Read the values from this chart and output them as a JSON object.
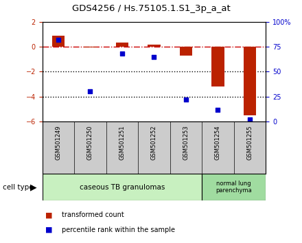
{
  "title": "GDS4256 / Hs.75105.1.S1_3p_a_at",
  "samples": [
    "GSM501249",
    "GSM501250",
    "GSM501251",
    "GSM501252",
    "GSM501253",
    "GSM501254",
    "GSM501255"
  ],
  "red_values": [
    0.9,
    -0.05,
    0.35,
    0.2,
    -0.7,
    -3.2,
    -5.5
  ],
  "blue_values": [
    82,
    30,
    68,
    65,
    22,
    12,
    2
  ],
  "ylim_left": [
    -6,
    2
  ],
  "ylim_right": [
    0,
    100
  ],
  "yticks_left": [
    2,
    0,
    -2,
    -4,
    -6
  ],
  "yticks_right": [
    0,
    25,
    50,
    75,
    100
  ],
  "group1_label": "caseous TB granulomas",
  "group1_samples": 5,
  "group2_label": "normal lung\nparenchyma",
  "group2_samples": 2,
  "group1_color": "#c8f0c0",
  "group2_color": "#a0dca0",
  "cell_type_label": "cell type",
  "legend1_label": "transformed count",
  "legend2_label": "percentile rank within the sample",
  "red_color": "#bb2200",
  "blue_color": "#0000cc",
  "background_color": "#ffffff",
  "plot_bg": "#ffffff",
  "label_bg": "#cccccc",
  "dotted_line_color": "#000000",
  "dashdot_line_color": "#cc0000",
  "bar_width": 0.4
}
